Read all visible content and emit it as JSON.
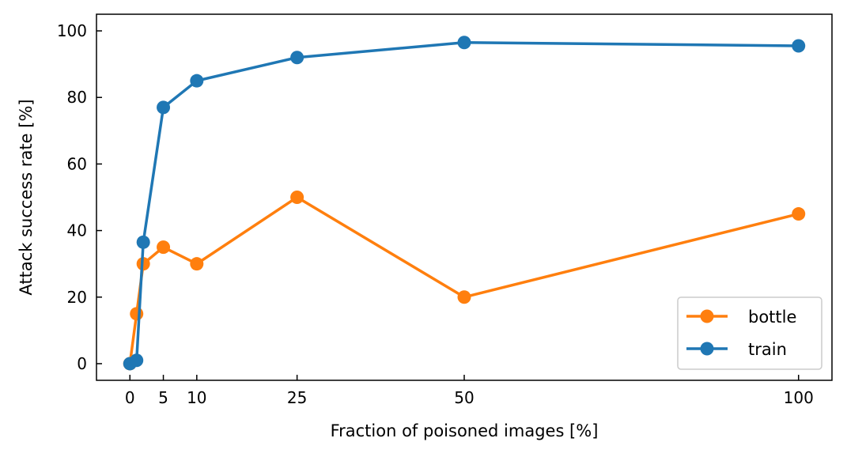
{
  "chart_data": {
    "type": "line",
    "title": "",
    "xlabel": "Fraction of poisoned images [%]",
    "ylabel": "Attack success rate [%]",
    "xlim": [
      -5,
      105
    ],
    "ylim": [
      -5,
      105
    ],
    "xticks": [
      0,
      5,
      10,
      25,
      50,
      100
    ],
    "yticks": [
      0,
      20,
      40,
      60,
      80,
      100
    ],
    "grid": false,
    "legend_position": "bottom-right",
    "series": [
      {
        "name": "bottle",
        "color": "#ff7f0e",
        "x": [
          0,
          1,
          2,
          5,
          10,
          25,
          50,
          100
        ],
        "y": [
          0,
          15,
          30,
          35,
          30,
          50,
          20,
          45
        ]
      },
      {
        "name": "train",
        "color": "#1f77b4",
        "x": [
          0,
          1,
          2,
          5,
          10,
          25,
          50,
          100
        ],
        "y": [
          0,
          1,
          36.5,
          77,
          85,
          92,
          96.5,
          95.5
        ]
      }
    ]
  }
}
